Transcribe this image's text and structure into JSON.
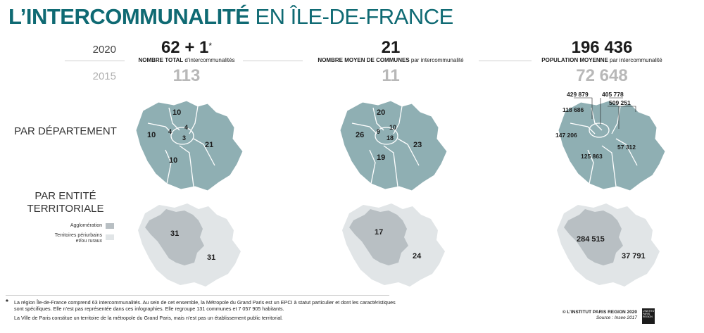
{
  "title": {
    "part1": "L’INTERCOMMUNALITÉ",
    "part2": "EN ÎLE-DE-FRANCE"
  },
  "years": {
    "current": "2020",
    "previous": "2015"
  },
  "stats": [
    {
      "value_2020": "62 + 1",
      "star": "*",
      "caption_bold": "NOMBRE TOTAL",
      "caption_rest": " d’intercommunalités",
      "value_2015": "113"
    },
    {
      "value_2020": "21",
      "star": "",
      "caption_bold": "NOMBRE MOYEN DE COMMUNES",
      "caption_rest": " par intercommunalité",
      "value_2015": "11"
    },
    {
      "value_2020": "196 436",
      "star": "",
      "caption_bold": "POPULATION MOYENNE",
      "caption_rest": " par intercommunalité",
      "value_2015": "72 648"
    }
  ],
  "rows": {
    "departement": "PAR DÉPARTEMENT",
    "entite_1": "PAR ENTITÉ",
    "entite_2": "TERRITORIALE"
  },
  "legend": {
    "agglo": "Agglomération",
    "peri_1": "Territoires périurbains",
    "peri_2": "et/ou ruraux"
  },
  "dept_maps": [
    {
      "north": "10",
      "west": "10",
      "south": "10",
      "east": "21",
      "c1": "4",
      "c2": "4",
      "c3": "3"
    },
    {
      "north": "20",
      "west": "26",
      "south": "19",
      "east": "23",
      "c1": "9",
      "c2": "10",
      "c3": "18"
    },
    {
      "north": "118 686",
      "west": "147 206",
      "south": "125 863",
      "east": "57 312",
      "co1": "429 879",
      "co2": "405 778",
      "co3": "509 251"
    }
  ],
  "entity_maps": [
    {
      "agglo": "31",
      "peri": "31"
    },
    {
      "agglo": "17",
      "peri": "24"
    },
    {
      "agglo": "284 515",
      "peri": "37 791"
    }
  ],
  "footnote": {
    "star": "*",
    "line1": "La région Île-de-France comprend 63 intercommunalités. Au sein de cet ensemble, la Métropole du Grand Paris est un EPCI à statut particulier et dont les caractéristiques",
    "line2": "sont spécifiques. Elle n’est pas représentée dans ces infographies. Elle regroupe 131 communes et 7 057 905 habitants.",
    "line3": "La Ville de Paris constitue un territoire de la métropole du Grand Paris, mais n’est pas un établissement public territorial."
  },
  "credit": {
    "line1": "© L’INSTITUT PARIS REGION 2020",
    "line2": "Source : Insee 2017"
  },
  "logo": {
    "l1": "L’INSTITUT",
    "l2": "PARIS",
    "l3": "REGION"
  },
  "colors": {
    "title": "#0f6a73",
    "dept_fill": "#8fafb3",
    "agglo_fill": "#b8bfc3",
    "peri_fill": "#e1e5e7"
  }
}
